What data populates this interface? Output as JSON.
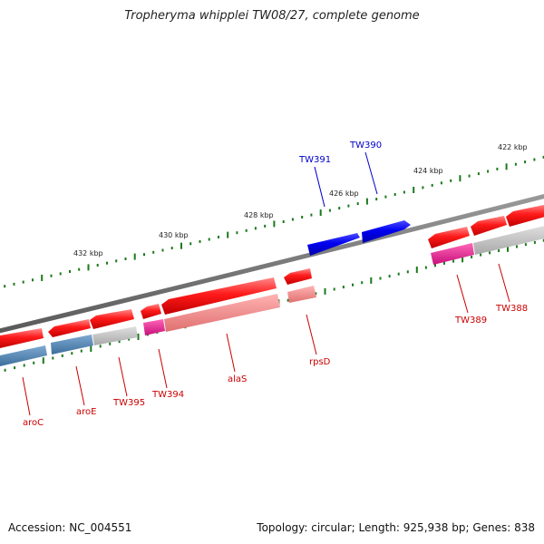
{
  "title": "Tropheryma whipplei TW08/27, complete genome",
  "footer": {
    "accession": "Accession: NC_004551",
    "topology": "Topology: circular; Length: 925,938 bp; Genes: 838"
  },
  "colors": {
    "forward_gene": "#0000ee",
    "reverse_gene": "#ee0000",
    "backbone": "#777777",
    "tick": "#1a7a1a",
    "cat_blue": "#4a7fb0",
    "cat_gray": "#b8b8b8",
    "cat_pink": "#f08080",
    "cat_magenta": "#e0208a",
    "forward_label": "#0000cc",
    "reverse_label": "#cc0000"
  },
  "scale": {
    "labels": [
      "432 kbp",
      "430 kbp",
      "428 kbp",
      "426 kbp",
      "424 kbp",
      "422 kbp"
    ]
  },
  "genes": {
    "forward": [
      "TW391",
      "TW390"
    ],
    "reverse": [
      "aroC",
      "aroE",
      "TW395",
      "TW394",
      "alaS",
      "rpsD",
      "TW389",
      "TW388"
    ]
  }
}
